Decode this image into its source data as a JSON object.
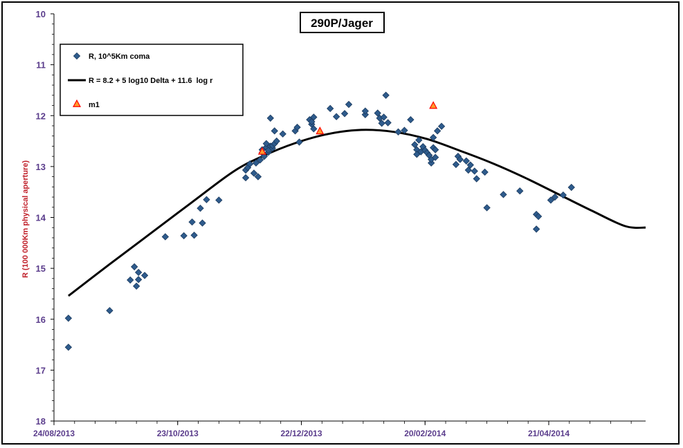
{
  "chart_data": {
    "type": "scatter",
    "title": "290P/Jager",
    "ylabel": "R (100 000Km physical aperture)",
    "xlabel": "",
    "ylim": [
      10,
      18
    ],
    "y_inverted": true,
    "yticks": [
      "10",
      "11",
      "12",
      "13",
      "14",
      "15",
      "16",
      "17",
      "18"
    ],
    "xrange": [
      "2013-08-24",
      "2014-06-07"
    ],
    "xticks": [
      "24/08/2013",
      "23/10/2013",
      "22/12/2013",
      "20/02/2014",
      "21/04/2014"
    ],
    "grid": false,
    "legend_position": "top-left",
    "series": [
      {
        "name": "R, 10^5Km coma",
        "marker": "diamond",
        "color": "#2e5b8c",
        "points": [
          [
            "2013-08-31",
            15.98
          ],
          [
            "2013-08-31",
            16.55
          ],
          [
            "2013-09-20",
            15.83
          ],
          [
            "2013-09-30",
            15.23
          ],
          [
            "2013-10-02",
            14.97
          ],
          [
            "2013-10-03",
            15.35
          ],
          [
            "2013-10-04",
            15.08
          ],
          [
            "2013-10-04",
            15.22
          ],
          [
            "2013-10-07",
            15.14
          ],
          [
            "2013-10-17",
            14.38
          ],
          [
            "2013-10-26",
            14.36
          ],
          [
            "2013-10-30",
            14.09
          ],
          [
            "2013-10-31",
            14.35
          ],
          [
            "2013-11-03",
            13.82
          ],
          [
            "2013-11-04",
            14.11
          ],
          [
            "2013-11-06",
            13.65
          ],
          [
            "2013-11-12",
            13.66
          ],
          [
            "2013-11-25",
            13.22
          ],
          [
            "2013-11-25",
            13.07
          ],
          [
            "2013-11-26",
            13.02
          ],
          [
            "2013-11-27",
            12.95
          ],
          [
            "2013-11-29",
            13.13
          ],
          [
            "2013-11-30",
            12.93
          ],
          [
            "2013-12-01",
            13.2
          ],
          [
            "2013-12-02",
            12.87
          ],
          [
            "2013-12-03",
            12.73
          ],
          [
            "2013-12-03",
            12.67
          ],
          [
            "2013-12-04",
            12.8
          ],
          [
            "2013-12-05",
            12.62
          ],
          [
            "2013-12-05",
            12.55
          ],
          [
            "2013-12-06",
            12.72
          ],
          [
            "2013-12-06",
            12.68
          ],
          [
            "2013-12-07",
            12.6
          ],
          [
            "2013-12-07",
            12.05
          ],
          [
            "2013-12-08",
            12.64
          ],
          [
            "2013-12-08",
            12.59
          ],
          [
            "2013-12-09",
            12.55
          ],
          [
            "2013-12-09",
            12.3
          ],
          [
            "2013-12-10",
            12.5
          ],
          [
            "2013-12-13",
            12.36
          ],
          [
            "2013-12-19",
            12.3
          ],
          [
            "2013-12-20",
            12.23
          ],
          [
            "2013-12-21",
            12.52
          ],
          [
            "2013-12-26",
            12.08
          ],
          [
            "2013-12-27",
            12.17
          ],
          [
            "2013-12-27",
            12.12
          ],
          [
            "2013-12-28",
            12.03
          ],
          [
            "2013-12-28",
            12.26
          ],
          [
            "2014-01-05",
            11.86
          ],
          [
            "2014-01-08",
            12.02
          ],
          [
            "2014-01-12",
            11.96
          ],
          [
            "2014-01-14",
            11.78
          ],
          [
            "2014-01-22",
            11.98
          ],
          [
            "2014-01-22",
            11.91
          ],
          [
            "2014-01-28",
            11.95
          ],
          [
            "2014-01-29",
            12.05
          ],
          [
            "2014-01-30",
            12.15
          ],
          [
            "2014-01-31",
            12.03
          ],
          [
            "2014-02-01",
            11.6
          ],
          [
            "2014-02-02",
            12.14
          ],
          [
            "2014-02-07",
            12.32
          ],
          [
            "2014-02-10",
            12.29
          ],
          [
            "2014-02-13",
            12.08
          ],
          [
            "2014-02-15",
            12.57
          ],
          [
            "2014-02-16",
            12.67
          ],
          [
            "2014-02-16",
            12.76
          ],
          [
            "2014-02-17",
            12.48
          ],
          [
            "2014-02-18",
            12.71
          ],
          [
            "2014-02-19",
            12.61
          ],
          [
            "2014-02-20",
            12.68
          ],
          [
            "2014-02-21",
            12.73
          ],
          [
            "2014-02-22",
            12.78
          ],
          [
            "2014-02-23",
            12.93
          ],
          [
            "2014-02-23",
            12.86
          ],
          [
            "2014-02-24",
            12.63
          ],
          [
            "2014-02-24",
            12.43
          ],
          [
            "2014-02-25",
            12.67
          ],
          [
            "2014-02-25",
            12.82
          ],
          [
            "2014-02-26",
            12.3
          ],
          [
            "2014-02-28",
            12.21
          ],
          [
            "2014-03-07",
            12.96
          ],
          [
            "2014-03-08",
            12.8
          ],
          [
            "2014-03-09",
            12.86
          ],
          [
            "2014-03-12",
            12.89
          ],
          [
            "2014-03-13",
            13.07
          ],
          [
            "2014-03-14",
            12.97
          ],
          [
            "2014-03-16",
            13.09
          ],
          [
            "2014-03-17",
            13.24
          ],
          [
            "2014-03-21",
            13.11
          ],
          [
            "2014-03-22",
            13.81
          ],
          [
            "2014-03-30",
            13.55
          ],
          [
            "2014-04-07",
            13.48
          ],
          [
            "2014-04-15",
            13.94
          ],
          [
            "2014-04-15",
            14.23
          ],
          [
            "2014-04-16",
            13.98
          ],
          [
            "2014-04-22",
            13.66
          ],
          [
            "2014-04-24",
            13.6
          ],
          [
            "2014-04-28",
            13.56
          ],
          [
            "2014-05-02",
            13.41
          ]
        ]
      },
      {
        "name": "R = 8.2 + 5 log10 Delta + 11.6  log r",
        "type": "line",
        "color": "#000000",
        "points": [
          [
            "2013-08-31",
            15.54
          ],
          [
            "2013-09-20",
            14.92
          ],
          [
            "2013-10-10",
            14.31
          ],
          [
            "2013-10-30",
            13.7
          ],
          [
            "2013-11-19",
            13.1
          ],
          [
            "2013-12-03",
            12.8
          ],
          [
            "2013-12-19",
            12.54
          ],
          [
            "2014-01-04",
            12.36
          ],
          [
            "2014-01-20",
            12.28
          ],
          [
            "2014-02-05",
            12.32
          ],
          [
            "2014-02-21",
            12.46
          ],
          [
            "2014-03-09",
            12.69
          ],
          [
            "2014-03-25",
            12.94
          ],
          [
            "2014-04-10",
            13.23
          ],
          [
            "2014-04-26",
            13.55
          ],
          [
            "2014-05-12",
            13.87
          ],
          [
            "2014-05-28",
            14.17
          ],
          [
            "2014-06-07",
            14.2
          ]
        ]
      },
      {
        "name": "m1",
        "marker": "triangle",
        "color": "#ff0000",
        "fill": "#ff9a2a",
        "points": [
          [
            "2013-12-03",
            12.7
          ],
          [
            "2013-12-31",
            12.3
          ],
          [
            "2014-02-24",
            11.8
          ]
        ]
      }
    ]
  }
}
